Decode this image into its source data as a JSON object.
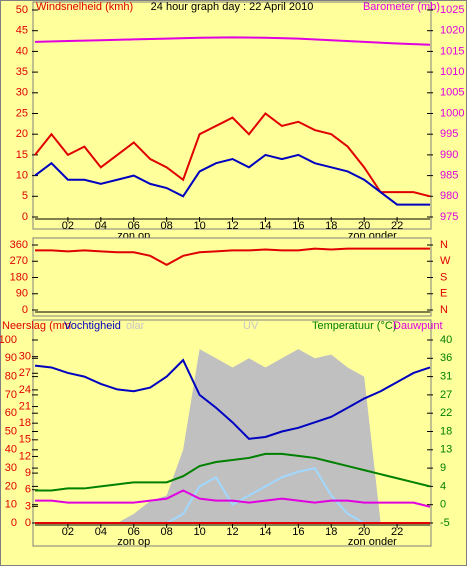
{
  "chart_data": [
    {
      "type": "line",
      "title": "24 hour graph day : 22 April 2010",
      "ylabel": "Windsnelheid (kmh)",
      "ylabel_color": "#e00000",
      "y2label": "Barometer (mb)",
      "y2label_color": "#e000e0",
      "x": [
        0,
        1,
        2,
        3,
        4,
        5,
        6,
        7,
        8,
        9,
        10,
        11,
        12,
        13,
        14,
        15,
        16,
        17,
        18,
        19,
        20,
        21,
        22,
        23,
        24
      ],
      "xlim": [
        0,
        24
      ],
      "xticks": [
        {
          "value": 2,
          "label": "02"
        },
        {
          "value": 4,
          "label": "04"
        },
        {
          "value": 6,
          "label": "06"
        },
        {
          "value": 8,
          "label": "08"
        },
        10,
        12,
        14,
        16,
        18,
        20,
        22
      ],
      "annotations": [
        {
          "text": "zon op",
          "x": 6
        },
        {
          "text": "zon onder",
          "x": 20.5
        }
      ],
      "ylim": [
        0,
        50
      ],
      "yticks": [
        0,
        5,
        10,
        15,
        20,
        25,
        30,
        35,
        40,
        45,
        50
      ],
      "ytick_color": "#e00000",
      "y2lim": [
        975,
        1025
      ],
      "y2ticks": [
        975,
        980,
        985,
        990,
        995,
        1000,
        1005,
        1010,
        1015,
        1020,
        1025
      ],
      "y2tick_color": "#e000e0",
      "series": [
        {
          "color": "#e000e0",
          "axis": "y2",
          "x": [
            0,
            2,
            4,
            6,
            8,
            10,
            12,
            14,
            16,
            18,
            20,
            22,
            24
          ],
          "values": [
            1017.3,
            1017.5,
            1017.7,
            1017.9,
            1018.1,
            1018.3,
            1018.4,
            1018.3,
            1018.1,
            1017.7,
            1017.3,
            1016.9,
            1016.6
          ]
        },
        {
          "color": "#e00000",
          "axis": "y",
          "values": [
            15,
            20,
            15,
            17,
            12,
            15,
            18,
            14,
            12,
            9,
            20,
            22,
            24,
            20,
            25,
            22,
            23,
            21,
            20,
            17,
            12,
            6,
            6,
            6,
            5
          ]
        },
        {
          "color": "#0000c0",
          "axis": "y",
          "values": [
            10,
            13,
            9,
            9,
            8,
            9,
            10,
            8,
            7,
            5,
            11,
            13,
            14,
            12,
            15,
            14,
            15,
            13,
            12,
            11,
            9,
            6,
            3,
            3,
            3
          ]
        }
      ]
    },
    {
      "type": "line",
      "x": [
        0,
        1,
        2,
        3,
        4,
        5,
        6,
        7,
        8,
        9,
        10,
        11,
        12,
        13,
        14,
        15,
        16,
        17,
        18,
        19,
        20,
        21,
        22,
        23,
        24
      ],
      "xlim": [
        0,
        24
      ],
      "ylim": [
        0,
        360
      ],
      "yticks": [
        0,
        90,
        180,
        270,
        360
      ],
      "ytick_color": "#e00000",
      "y2lim": [
        0,
        360
      ],
      "y2ticks": [
        {
          "value": 0,
          "label": "N"
        },
        {
          "value": 90,
          "label": "E"
        },
        {
          "value": 180,
          "label": "S"
        },
        {
          "value": 270,
          "label": "W"
        },
        {
          "value": 360,
          "label": "N"
        }
      ],
      "y2tick_color": "#e00000",
      "series": [
        {
          "color": "#e00000",
          "axis": "y",
          "values": [
            330,
            330,
            325,
            330,
            325,
            320,
            320,
            300,
            250,
            300,
            320,
            325,
            330,
            330,
            335,
            330,
            330,
            340,
            335,
            340,
            340,
            340,
            340,
            340,
            340
          ]
        }
      ]
    },
    {
      "type": "line",
      "labels": [
        {
          "text": "Neerslag (mm",
          "color": "#e00000"
        },
        {
          "text": "Vochtigheid",
          "color": "#0000c0"
        },
        {
          "text": "olar",
          "color": "#c8c8c8"
        },
        {
          "text": "UV",
          "color": "#c8c8c8"
        },
        {
          "text": "Temperatuur (°C)",
          "color": "#008000"
        },
        {
          "text": "Dauwpunt",
          "color": "#e000e0"
        }
      ],
      "x": [
        0,
        1,
        2,
        3,
        4,
        5,
        6,
        7,
        8,
        9,
        10,
        11,
        12,
        13,
        14,
        15,
        16,
        17,
        18,
        19,
        20,
        21,
        22,
        23,
        24
      ],
      "xlim": [
        0,
        24
      ],
      "xticks": [
        {
          "value": 2,
          "label": "02"
        },
        {
          "value": 4,
          "label": "04"
        },
        {
          "value": 6,
          "label": "06"
        },
        {
          "value": 8,
          "label": "08"
        },
        10,
        12,
        14,
        16,
        18,
        20,
        22
      ],
      "annotations": [
        {
          "text": "zon op",
          "x": 6
        },
        {
          "text": "zon onder",
          "x": 20.5
        }
      ],
      "ylim": [
        0,
        100
      ],
      "yticks": [
        0,
        10,
        20,
        30,
        40,
        50,
        60,
        70,
        80,
        90,
        100
      ],
      "ytick_color": "#e00000",
      "y3lim": [
        0,
        33
      ],
      "y3ticks": [
        0,
        3,
        6,
        9,
        12,
        15,
        18,
        21,
        24,
        27,
        30
      ],
      "y3tick_color": "#e00000",
      "y2lim": [
        -5,
        40
      ],
      "y2ticks": [
        -5,
        {
          "value": -0.5,
          "label": "0"
        },
        4,
        {
          "value": 8.5,
          "label": "9"
        },
        13,
        {
          "value": 17.5,
          "label": "18"
        },
        22,
        {
          "value": 26.5,
          "label": "27"
        },
        31,
        {
          "value": 35.5,
          "label": "36"
        },
        40
      ],
      "y2tick_color": "#008000",
      "series": [
        {
          "type": "area",
          "color": "#c0c0c0",
          "axis": "y",
          "values": [
            0,
            0,
            0,
            0,
            0,
            0,
            5,
            12,
            15,
            40,
            95,
            90,
            85,
            90,
            85,
            90,
            95,
            90,
            92,
            85,
            80,
            0,
            0,
            0,
            0
          ]
        },
        {
          "color": "#a0d8ff",
          "axis": "y",
          "values": [
            0,
            0,
            0,
            0,
            0,
            0,
            0,
            0,
            0,
            5,
            20,
            25,
            10,
            15,
            20,
            25,
            28,
            30,
            15,
            5,
            0,
            0,
            0,
            0,
            0
          ]
        },
        {
          "color": "#0000c0",
          "axis": "y",
          "values": [
            86,
            85,
            82,
            80,
            76,
            73,
            72,
            74,
            80,
            89,
            70,
            63,
            55,
            46,
            47,
            50,
            52,
            55,
            58,
            63,
            68,
            72,
            77,
            82,
            85
          ]
        },
        {
          "color": "#008000",
          "axis": "y2",
          "values": [
            3,
            3,
            3.5,
            3.5,
            4,
            4.5,
            5,
            5,
            5,
            6.5,
            9,
            10,
            10.5,
            11,
            12,
            12,
            11.5,
            11,
            10,
            9,
            8,
            7,
            6,
            5,
            4
          ]
        },
        {
          "color": "#e000e0",
          "axis": "y2",
          "values": [
            0.5,
            0.5,
            0,
            0,
            0,
            0,
            0,
            0.5,
            1,
            3,
            1,
            0.5,
            0.5,
            0,
            0.5,
            1,
            0.5,
            0,
            0.5,
            0.5,
            0,
            0,
            0,
            0,
            -1
          ]
        },
        {
          "color": "#e00000",
          "axis": "y3",
          "values": [
            0,
            0,
            0,
            0,
            0,
            0,
            0,
            0,
            0,
            0,
            0,
            0,
            0,
            0,
            0,
            0,
            0,
            0,
            0,
            0,
            0,
            0,
            0,
            0,
            0
          ]
        }
      ]
    }
  ]
}
